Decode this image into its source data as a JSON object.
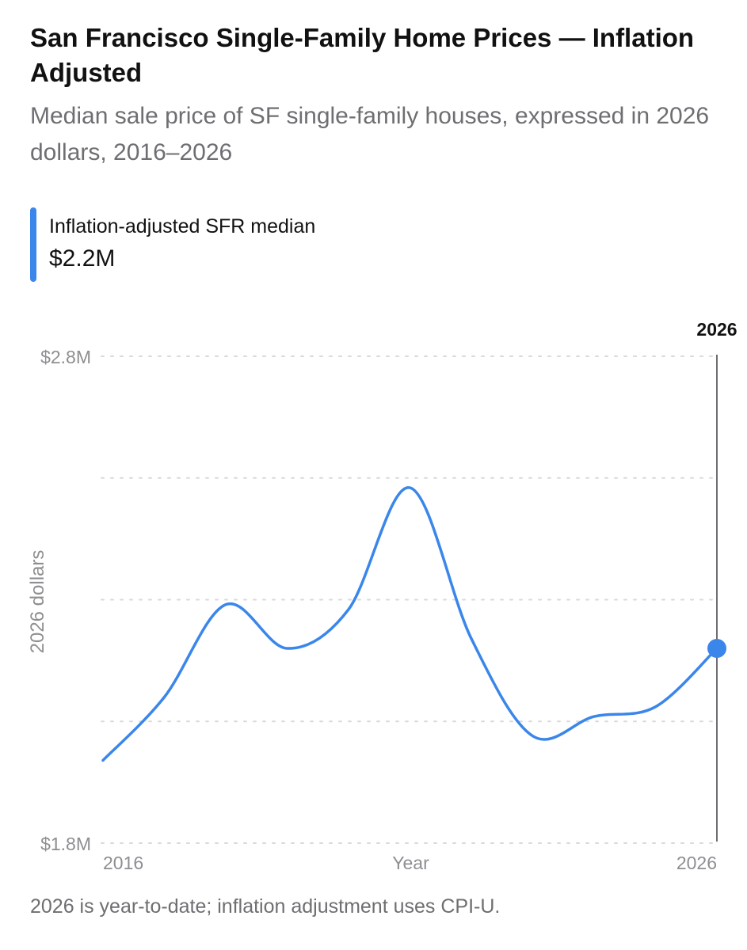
{
  "header": {
    "title": "San Francisco Single-Family Home Prices — Inflation Adjusted",
    "subtitle": "Median sale price of SF single-family houses, expressed in 2026 dollars, 2016–2026"
  },
  "legend": {
    "label": "Inflation-adjusted SFR median",
    "value": "$2.2M"
  },
  "footnote": "2026 is year-to-date; inflation adjustment uses CPI-U.",
  "colors": {
    "series": "#3a86ea",
    "grid": "#d9d9de",
    "axis_text": "#8e8e93",
    "cursor": "#6e6e73"
  },
  "chart_data": {
    "type": "line",
    "title": "San Francisco Single-Family Home Prices — Inflation Adjusted",
    "xlabel": "Year",
    "ylabel": "2026 dollars",
    "x": [
      2016,
      2017,
      2018,
      2019,
      2020,
      2021,
      2022,
      2023,
      2024,
      2025,
      2026
    ],
    "series": [
      {
        "name": "Inflation-adjusted SFR median",
        "values": [
          1.97,
          2.1,
          2.29,
          2.2,
          2.28,
          2.53,
          2.22,
          2.02,
          2.06,
          2.08,
          2.2
        ]
      }
    ],
    "ylim": [
      1.8,
      2.8
    ],
    "y_ticks": [
      1.8,
      2.05,
      2.3,
      2.55,
      2.8
    ],
    "y_tick_labels": [
      "$1.8M",
      "",
      "",
      "",
      "$2.8M"
    ],
    "x_tick_labels": [
      "2016",
      "2026"
    ],
    "grid": true,
    "grid_style": "dotted-horizontal",
    "selected_x": 2026,
    "selected_label": "2026",
    "legend_position": "top-left"
  }
}
